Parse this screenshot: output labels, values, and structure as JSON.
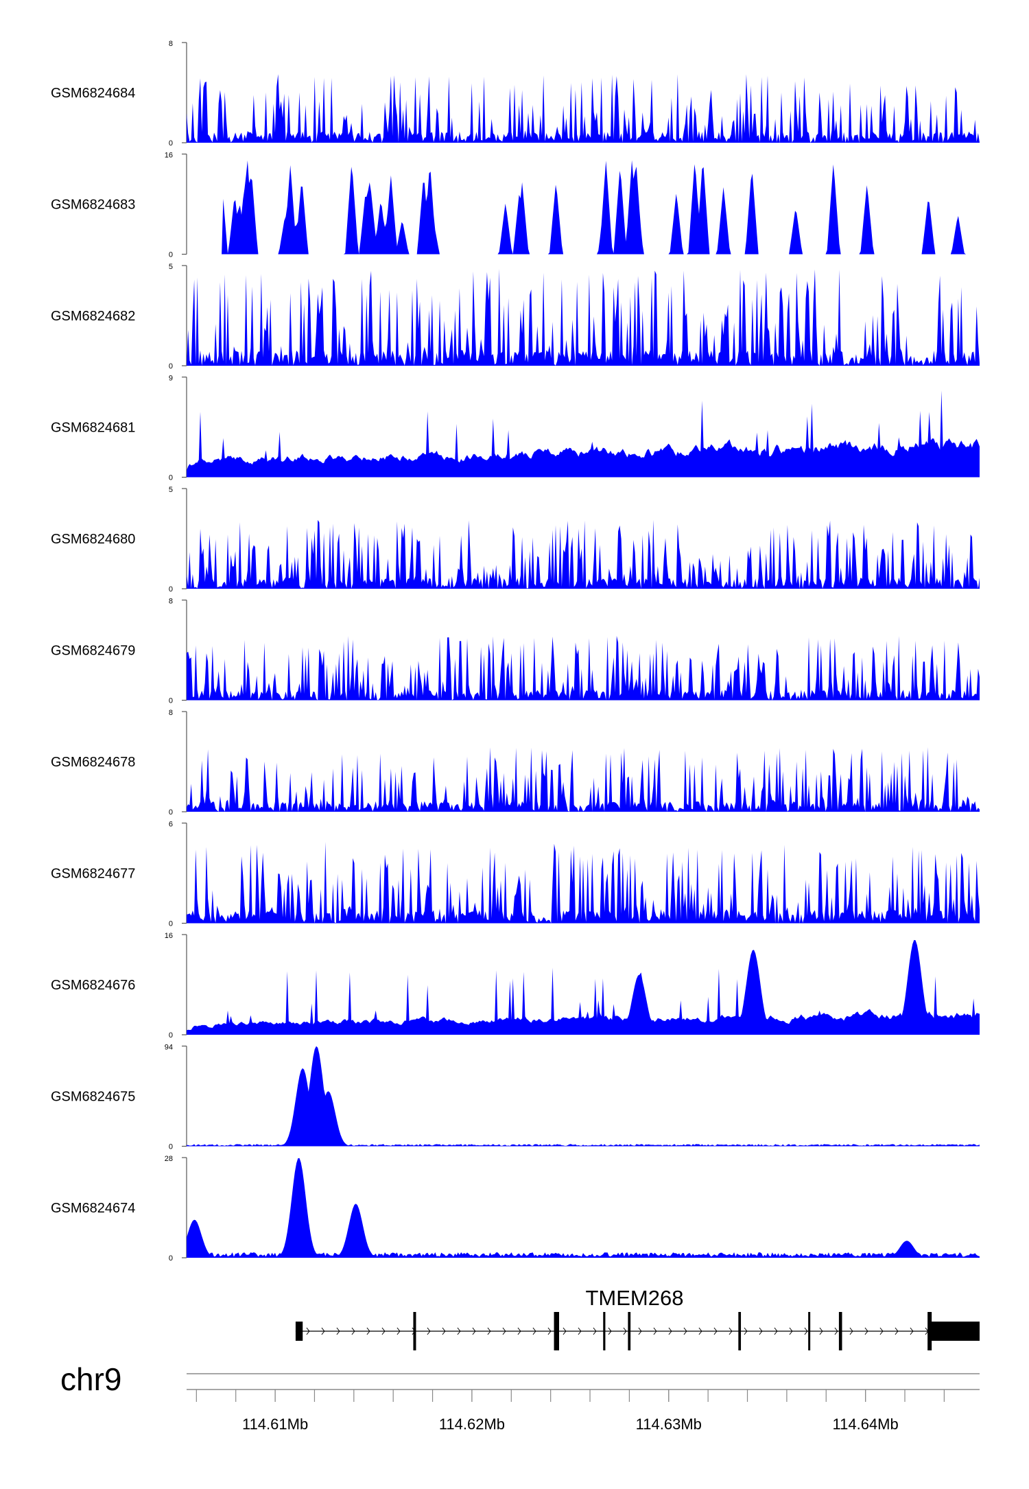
{
  "chart_data": {
    "type": "area",
    "title": "",
    "region": {
      "chrom_label": "chr9",
      "start": 114.6055,
      "end": 114.6458,
      "ticks": [
        114.61,
        114.62,
        114.63,
        114.64
      ],
      "tick_labels": [
        "114.61Mb",
        "114.62Mb",
        "114.63Mb",
        "114.64Mb"
      ],
      "minor_tick_step": 0.002
    },
    "colors": {
      "signal": "#0000ff",
      "axis": "#555555",
      "gene": "#000000"
    },
    "tracks": [
      {
        "name": "GSM6824684",
        "ymax": 8,
        "ymax_label": "8",
        "ymin_label": "0",
        "profile": "spiky",
        "level": 0.32,
        "seed": 11
      },
      {
        "name": "GSM6824683",
        "ymax": 16,
        "ymax_label": "16",
        "ymin_label": "0",
        "profile": "sparse",
        "level": 0.5,
        "seed": 23
      },
      {
        "name": "GSM6824682",
        "ymax": 5,
        "ymax_label": "5",
        "ymin_label": "0",
        "profile": "spiky",
        "level": 0.45,
        "seed": 37
      },
      {
        "name": "GSM6824681",
        "ymax": 9,
        "ymax_label": "9",
        "ymin_label": "0",
        "profile": "broad",
        "level": 0.35,
        "seed": 41
      },
      {
        "name": "GSM6824680",
        "ymax": 5,
        "ymax_label": "5",
        "ymin_label": "0",
        "profile": "spiky",
        "level": 0.32,
        "seed": 53
      },
      {
        "name": "GSM6824679",
        "ymax": 8,
        "ymax_label": "8",
        "ymin_label": "0",
        "profile": "spiky",
        "level": 0.3,
        "seed": 67
      },
      {
        "name": "GSM6824678",
        "ymax": 8,
        "ymax_label": "8",
        "ymin_label": "0",
        "profile": "spiky",
        "level": 0.3,
        "seed": 71
      },
      {
        "name": "GSM6824677",
        "ymax": 6,
        "ymax_label": "6",
        "ymin_label": "0",
        "profile": "spiky",
        "level": 0.38,
        "seed": 83
      },
      {
        "name": "GSM6824676",
        "ymax": 16,
        "ymax_label": "16",
        "ymin_label": "0",
        "profile": "broad",
        "level": 0.22,
        "seed": 97,
        "peaks": [
          [
            114.6425,
            0.95
          ],
          [
            114.6343,
            0.85
          ],
          [
            114.6285,
            0.6
          ]
        ]
      },
      {
        "name": "GSM6824675",
        "ymax": 94,
        "ymax_label": "94",
        "ymin_label": "0",
        "profile": "quiet",
        "level": 0.02,
        "seed": 101,
        "peaks": [
          [
            114.6114,
            0.78
          ],
          [
            114.6121,
            1.0
          ],
          [
            114.6127,
            0.55
          ]
        ]
      },
      {
        "name": "GSM6824674",
        "ymax": 28,
        "ymax_label": "28",
        "ymin_label": "0",
        "profile": "quiet",
        "level": 0.05,
        "seed": 113,
        "peaks": [
          [
            114.6059,
            0.38
          ],
          [
            114.6112,
            1.0
          ],
          [
            114.6141,
            0.54
          ],
          [
            114.6421,
            0.17
          ]
        ]
      }
    ],
    "gene": {
      "name": "TMEM268",
      "start": 114.61104,
      "end": 114.6458,
      "strand": "+",
      "exons": [
        [
          114.61104,
          114.6114
        ],
        [
          114.61702,
          114.61716
        ],
        [
          114.62417,
          114.62443
        ],
        [
          114.62667,
          114.62678
        ],
        [
          114.62793,
          114.62806
        ],
        [
          114.63354,
          114.63367
        ],
        [
          114.63709,
          114.63718
        ],
        [
          114.63865,
          114.63881
        ],
        [
          114.64326,
          114.6458
        ]
      ]
    }
  }
}
